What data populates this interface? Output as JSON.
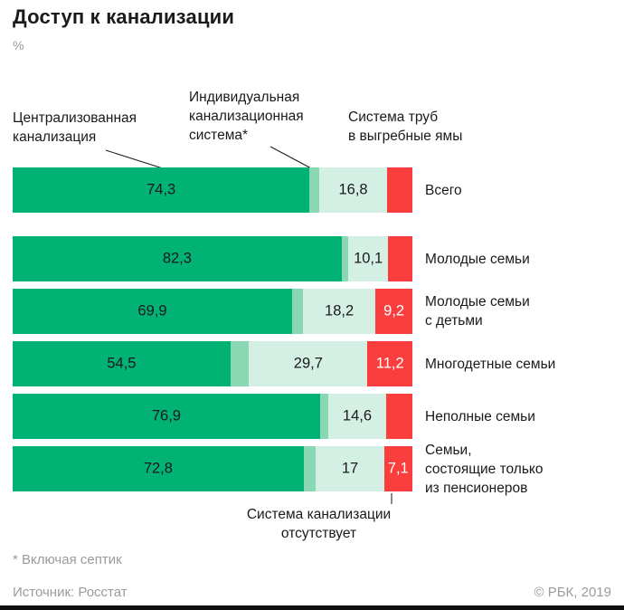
{
  "title": "Доступ к канализации",
  "unit_label": "%",
  "colors": {
    "centralized": "#00b274",
    "individual": "#8ad7b4",
    "cesspool": "#d4f0e4",
    "none": "#fa3e3e"
  },
  "annotations": {
    "centralized": {
      "text": "Централизованная\nканализация"
    },
    "individual": {
      "text": "Индивидуальная\nканализационная\nсистема*"
    },
    "cesspool": {
      "text": "Система труб\nв выгребные ямы"
    },
    "none": {
      "text": "Система канализации\nотсутствует"
    }
  },
  "chart_data": {
    "type": "bar",
    "orientation": "horizontal",
    "stacked": true,
    "title": "Доступ к канализации",
    "unit": "%",
    "xlim": [
      0,
      100
    ],
    "categories": [
      "Всего",
      "Молодые семьи",
      "Молодые семьи с детьми",
      "Многодетные семьи",
      "Неполные семьи",
      "Семьи, состоящие только из пенсионеров"
    ],
    "category_labels_display": [
      "Всего",
      "Молодые семьи",
      "Молодые семьи\nс детьми",
      "Многодетные семьи",
      "Неполные семьи",
      "Семьи,\nсостоящие только\nиз пенсионеров"
    ],
    "series": [
      {
        "name": "Централизованная канализация",
        "color_key": "centralized",
        "values": [
          74.3,
          82.3,
          69.9,
          54.5,
          76.9,
          72.8
        ],
        "labels": [
          "74,3",
          "82,3",
          "69,9",
          "54,5",
          "76,9",
          "72,8"
        ],
        "label_color": "dark"
      },
      {
        "name": "Индивидуальная канализационная система*",
        "color_key": "individual",
        "values": [
          2.5,
          1.6,
          2.7,
          4.6,
          2.0,
          3.1
        ],
        "labels": [
          "",
          "",
          "",
          "",
          "",
          ""
        ],
        "label_color": "dark"
      },
      {
        "name": "Система труб в выгребные ямы",
        "color_key": "cesspool",
        "values": [
          16.8,
          10.1,
          18.2,
          29.7,
          14.6,
          17
        ],
        "labels": [
          "16,8",
          "10,1",
          "18,2",
          "29,7",
          "14,6",
          "17"
        ],
        "label_color": "dark"
      },
      {
        "name": "Система канализации отсутствует",
        "color_key": "none",
        "values": [
          6.4,
          6.0,
          9.2,
          11.2,
          6.5,
          7.1
        ],
        "labels": [
          "",
          "",
          "9,2",
          "11,2",
          "",
          "7,1"
        ],
        "label_color": "white"
      }
    ]
  },
  "footnote": "* Включая септик",
  "footer": {
    "source": "Источник: Росстат",
    "copyright": "© РБК, 2019"
  }
}
